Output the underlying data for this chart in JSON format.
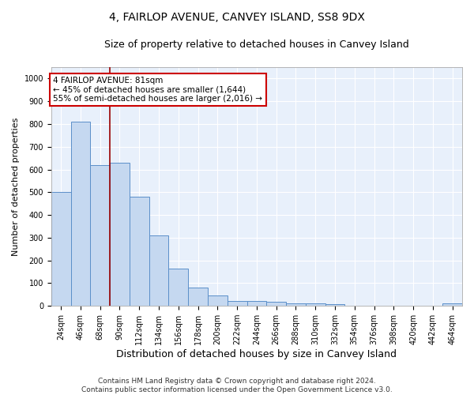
{
  "title": "4, FAIRLOP AVENUE, CANVEY ISLAND, SS8 9DX",
  "subtitle": "Size of property relative to detached houses in Canvey Island",
  "xlabel": "Distribution of detached houses by size in Canvey Island",
  "ylabel": "Number of detached properties",
  "categories": [
    "24sqm",
    "46sqm",
    "68sqm",
    "90sqm",
    "112sqm",
    "134sqm",
    "156sqm",
    "178sqm",
    "200sqm",
    "222sqm",
    "244sqm",
    "266sqm",
    "288sqm",
    "310sqm",
    "332sqm",
    "354sqm",
    "376sqm",
    "398sqm",
    "420sqm",
    "442sqm",
    "464sqm"
  ],
  "values": [
    500,
    810,
    620,
    630,
    480,
    310,
    163,
    80,
    45,
    23,
    20,
    17,
    12,
    10,
    7,
    2,
    0,
    0,
    0,
    0,
    10
  ],
  "bar_color": "#c5d8f0",
  "bar_edge_color": "#5b8fc9",
  "annotation_text": "4 FAIRLOP AVENUE: 81sqm\n← 45% of detached houses are smaller (1,644)\n55% of semi-detached houses are larger (2,016) →",
  "vline_color": "#990000",
  "annotation_box_color": "#ffffff",
  "annotation_box_edge": "#cc0000",
  "ylim": [
    0,
    1050
  ],
  "yticks": [
    0,
    100,
    200,
    300,
    400,
    500,
    600,
    700,
    800,
    900,
    1000
  ],
  "footnote": "Contains HM Land Registry data © Crown copyright and database right 2024.\nContains public sector information licensed under the Open Government Licence v3.0.",
  "background_color": "#e8f0fb",
  "title_fontsize": 10,
  "subtitle_fontsize": 9,
  "xlabel_fontsize": 9,
  "ylabel_fontsize": 8,
  "tick_fontsize": 7,
  "footnote_fontsize": 6.5
}
